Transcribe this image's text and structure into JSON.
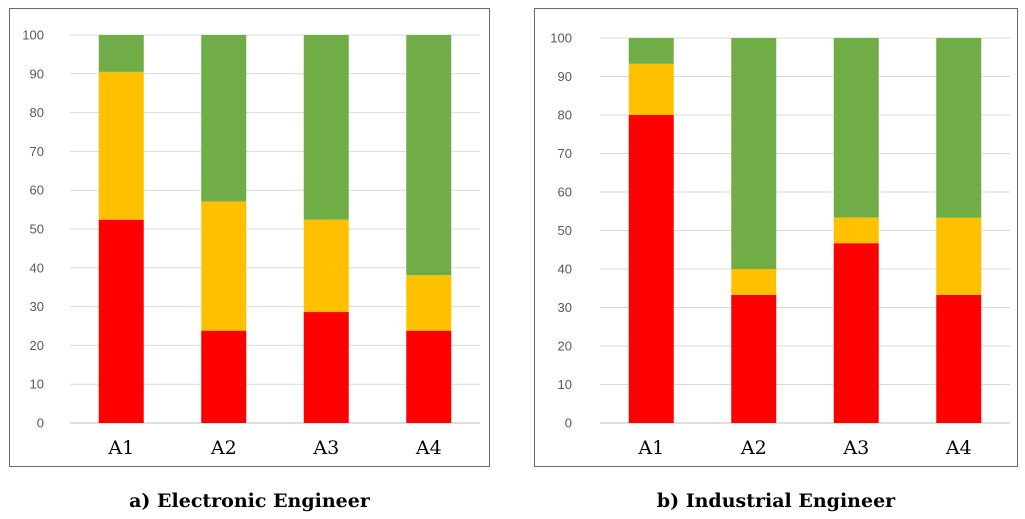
{
  "colors": {
    "red": "#ff0000",
    "yellow": "#ffc000",
    "green": "#70ad47",
    "grid": "#d9d9d9",
    "axis": "#bfbfbf"
  },
  "chart_data": [
    {
      "type": "bar",
      "stacked": true,
      "title": "a) Electronic Engineer",
      "categories": [
        "A1",
        "A2",
        "A3",
        "A4"
      ],
      "ylim": [
        0,
        100
      ],
      "yticks": [
        0,
        10,
        20,
        30,
        40,
        50,
        60,
        70,
        80,
        90,
        100
      ],
      "grid": true,
      "series": [
        {
          "color": "#ff0000",
          "values": [
            52.4,
            23.8,
            28.6,
            23.8
          ]
        },
        {
          "color": "#ffc000",
          "values": [
            38.1,
            33.3,
            23.8,
            14.3
          ]
        },
        {
          "color": "#70ad47",
          "values": [
            9.5,
            42.9,
            47.6,
            61.9
          ]
        }
      ]
    },
    {
      "type": "bar",
      "stacked": true,
      "title": "b) Industrial Engineer",
      "categories": [
        "A1",
        "A2",
        "A3",
        "A4"
      ],
      "ylim": [
        0,
        100
      ],
      "yticks": [
        0,
        10,
        20,
        30,
        40,
        50,
        60,
        70,
        80,
        90,
        100
      ],
      "grid": true,
      "series": [
        {
          "color": "#ff0000",
          "values": [
            80.0,
            33.3,
            46.7,
            33.3
          ]
        },
        {
          "color": "#ffc000",
          "values": [
            13.3,
            6.7,
            6.7,
            20.0
          ]
        },
        {
          "color": "#70ad47",
          "values": [
            6.7,
            60.0,
            46.6,
            46.7
          ]
        }
      ]
    }
  ]
}
